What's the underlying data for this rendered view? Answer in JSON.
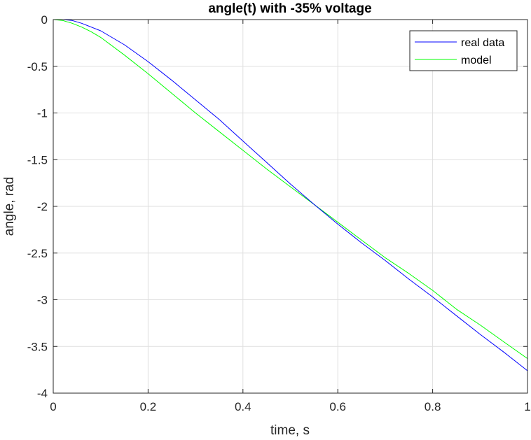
{
  "chart_data": {
    "type": "line",
    "title": "angle(t) with -35% voltage",
    "xlabel": "time, s",
    "ylabel": "angle, rad",
    "xlim": [
      0,
      1
    ],
    "ylim": [
      -4,
      0
    ],
    "xticks": [
      0,
      0.2,
      0.4,
      0.6,
      0.8,
      1
    ],
    "xtick_labels": [
      "0",
      "0.2",
      "0.4",
      "0.6",
      "0.8",
      "1"
    ],
    "yticks": [
      0,
      -0.5,
      -1,
      -1.5,
      -2,
      -2.5,
      -3,
      -3.5,
      -4
    ],
    "ytick_labels": [
      "0",
      "-0.5",
      "-1",
      "-1.5",
      "-2",
      "-2.5",
      "-3",
      "-3.5",
      "-4"
    ],
    "grid": true,
    "legend_position": "top-right",
    "series": [
      {
        "name": "real data",
        "color": "#0000ff",
        "x": [
          0,
          0.02,
          0.04,
          0.06,
          0.08,
          0.1,
          0.15,
          0.2,
          0.25,
          0.3,
          0.35,
          0.4,
          0.45,
          0.5,
          0.55,
          0.6,
          0.65,
          0.7,
          0.75,
          0.8,
          0.85,
          0.9,
          0.95,
          1.0
        ],
        "y": [
          0,
          0,
          -0.01,
          -0.04,
          -0.08,
          -0.12,
          -0.27,
          -0.45,
          -0.65,
          -0.86,
          -1.07,
          -1.3,
          -1.53,
          -1.76,
          -1.98,
          -2.19,
          -2.39,
          -2.58,
          -2.78,
          -2.97,
          -3.17,
          -3.37,
          -3.56,
          -3.76
        ]
      },
      {
        "name": "model",
        "color": "#00ff00",
        "x": [
          0,
          0.02,
          0.04,
          0.06,
          0.08,
          0.1,
          0.15,
          0.2,
          0.25,
          0.3,
          0.35,
          0.4,
          0.45,
          0.5,
          0.55,
          0.6,
          0.65,
          0.7,
          0.75,
          0.8,
          0.85,
          0.9,
          0.95,
          1.0
        ],
        "y": [
          0,
          -0.01,
          -0.04,
          -0.08,
          -0.13,
          -0.19,
          -0.38,
          -0.58,
          -0.79,
          -1.0,
          -1.2,
          -1.4,
          -1.6,
          -1.79,
          -1.98,
          -2.17,
          -2.36,
          -2.55,
          -2.72,
          -2.9,
          -3.1,
          -3.27,
          -3.45,
          -3.63
        ]
      }
    ]
  }
}
